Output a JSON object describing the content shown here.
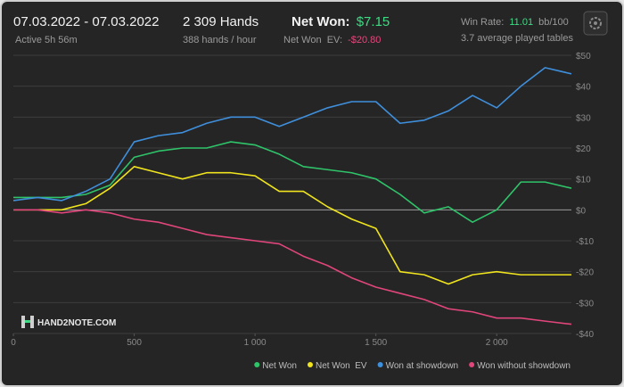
{
  "header": {
    "date_range": "07.03.2022 - 07.03.2022",
    "active": "Active 5h 56m",
    "hands": "2 309 Hands",
    "rate": "388 hands / hour",
    "net_won_label": "Net Won:",
    "net_won_value": "$7.15",
    "ev_label": "Net Won  EV:",
    "ev_value": "-$20.80",
    "win_rate_label": "Win Rate:",
    "win_rate_value": "11.01",
    "win_rate_unit": "bb/100",
    "tables": "3.7 average played tables",
    "logo": "HAND2NOTE.COM"
  },
  "chart_data": {
    "type": "line",
    "x": [
      0,
      100,
      200,
      300,
      400,
      500,
      600,
      700,
      800,
      900,
      1000,
      1100,
      1200,
      1300,
      1400,
      1500,
      1600,
      1700,
      1800,
      1900,
      2000,
      2100,
      2200,
      2309
    ],
    "series": [
      {
        "name": "Net Won",
        "color": "#2fc46a",
        "values": [
          4,
          4,
          4,
          5,
          8,
          17,
          19,
          20,
          20,
          22,
          21,
          18,
          14,
          13,
          12,
          10,
          5,
          -1,
          1,
          -4,
          0,
          9,
          9,
          7
        ]
      },
      {
        "name": "Net Won  EV",
        "color": "#f0e41e",
        "values": [
          0,
          0,
          0,
          2,
          7,
          14,
          12,
          10,
          12,
          12,
          11,
          6,
          6,
          1,
          -3,
          -6,
          -20,
          -21,
          -24,
          -21,
          -20,
          -21,
          -21,
          -21
        ]
      },
      {
        "name": "Won at showdown",
        "color": "#3f8fdc",
        "values": [
          3,
          4,
          3,
          6,
          10,
          22,
          24,
          25,
          28,
          30,
          30,
          27,
          30,
          33,
          35,
          35,
          28,
          29,
          32,
          37,
          33,
          40,
          46,
          44
        ]
      },
      {
        "name": "Won without showdown",
        "color": "#e0457b",
        "values": [
          0,
          0,
          -1,
          0,
          -1,
          -3,
          -4,
          -6,
          -8,
          -9,
          -10,
          -11,
          -15,
          -18,
          -22,
          -25,
          -27,
          -29,
          -32,
          -33,
          -35,
          -35,
          -36,
          -37
        ]
      }
    ],
    "xlim": [
      0,
      2309
    ],
    "xticks": [
      0,
      500,
      {
        "value": 1000,
        "label": "1 000"
      },
      {
        "value": 1500,
        "label": "1 500"
      },
      {
        "value": 2000,
        "label": "2 000"
      }
    ],
    "ylim": [
      -40,
      50
    ],
    "yticks": [
      {
        "value": -40,
        "label": "-$40"
      },
      {
        "value": -30,
        "label": "-$30"
      },
      {
        "value": -20,
        "label": "-$20"
      },
      {
        "value": -10,
        "label": "-$10"
      },
      {
        "value": 0,
        "label": "$0"
      },
      {
        "value": 10,
        "label": "$10"
      },
      {
        "value": 20,
        "label": "$20"
      },
      {
        "value": 30,
        "label": "$30"
      },
      {
        "value": 40,
        "label": "$40"
      },
      {
        "value": 50,
        "label": "$50"
      }
    ],
    "grid": true,
    "legend": "bottom-right"
  }
}
